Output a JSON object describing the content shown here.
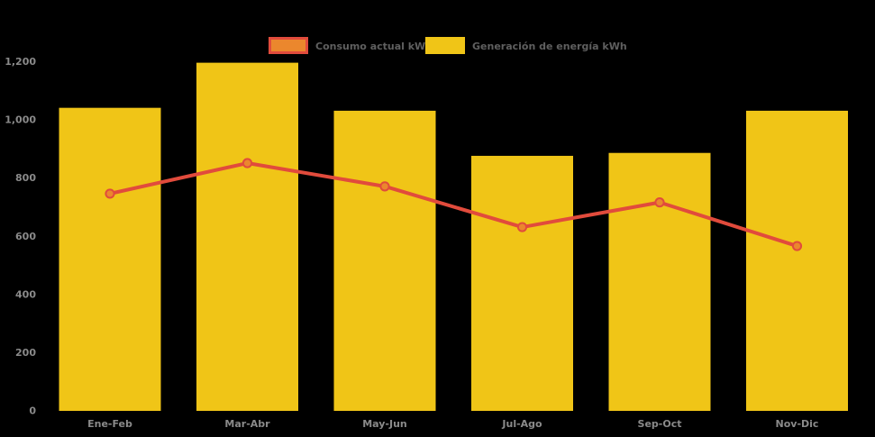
{
  "chart_data": {
    "type": "bar",
    "title": "",
    "categories": [
      "Ene-Feb",
      "Mar-Abr",
      "May-Jun",
      "Jul-Ago",
      "Sep-Oct",
      "Nov-Dic"
    ],
    "series": [
      {
        "name": "Consumo actual kWh",
        "type": "line",
        "values": [
          745,
          850,
          770,
          630,
          715,
          565
        ],
        "line_color": "#e14b3c",
        "marker_fill": "#eb872d"
      },
      {
        "name": "Generación de energía kWh",
        "type": "bar",
        "values": [
          1040,
          1195,
          1030,
          875,
          885,
          1030
        ],
        "color": "#f0c517"
      }
    ],
    "ylim": [
      0,
      1200
    ],
    "yticks": [
      0,
      200,
      400,
      600,
      800,
      1000,
      1200
    ],
    "ytick_labels": [
      "0",
      "200",
      "400",
      "600",
      "800",
      "1,000",
      "1,200"
    ],
    "grid": false,
    "legend_position": "top",
    "background_color": "#000000",
    "axis_label_color": "#8a8a8a",
    "legend_label_color": "#5f5f5f"
  }
}
